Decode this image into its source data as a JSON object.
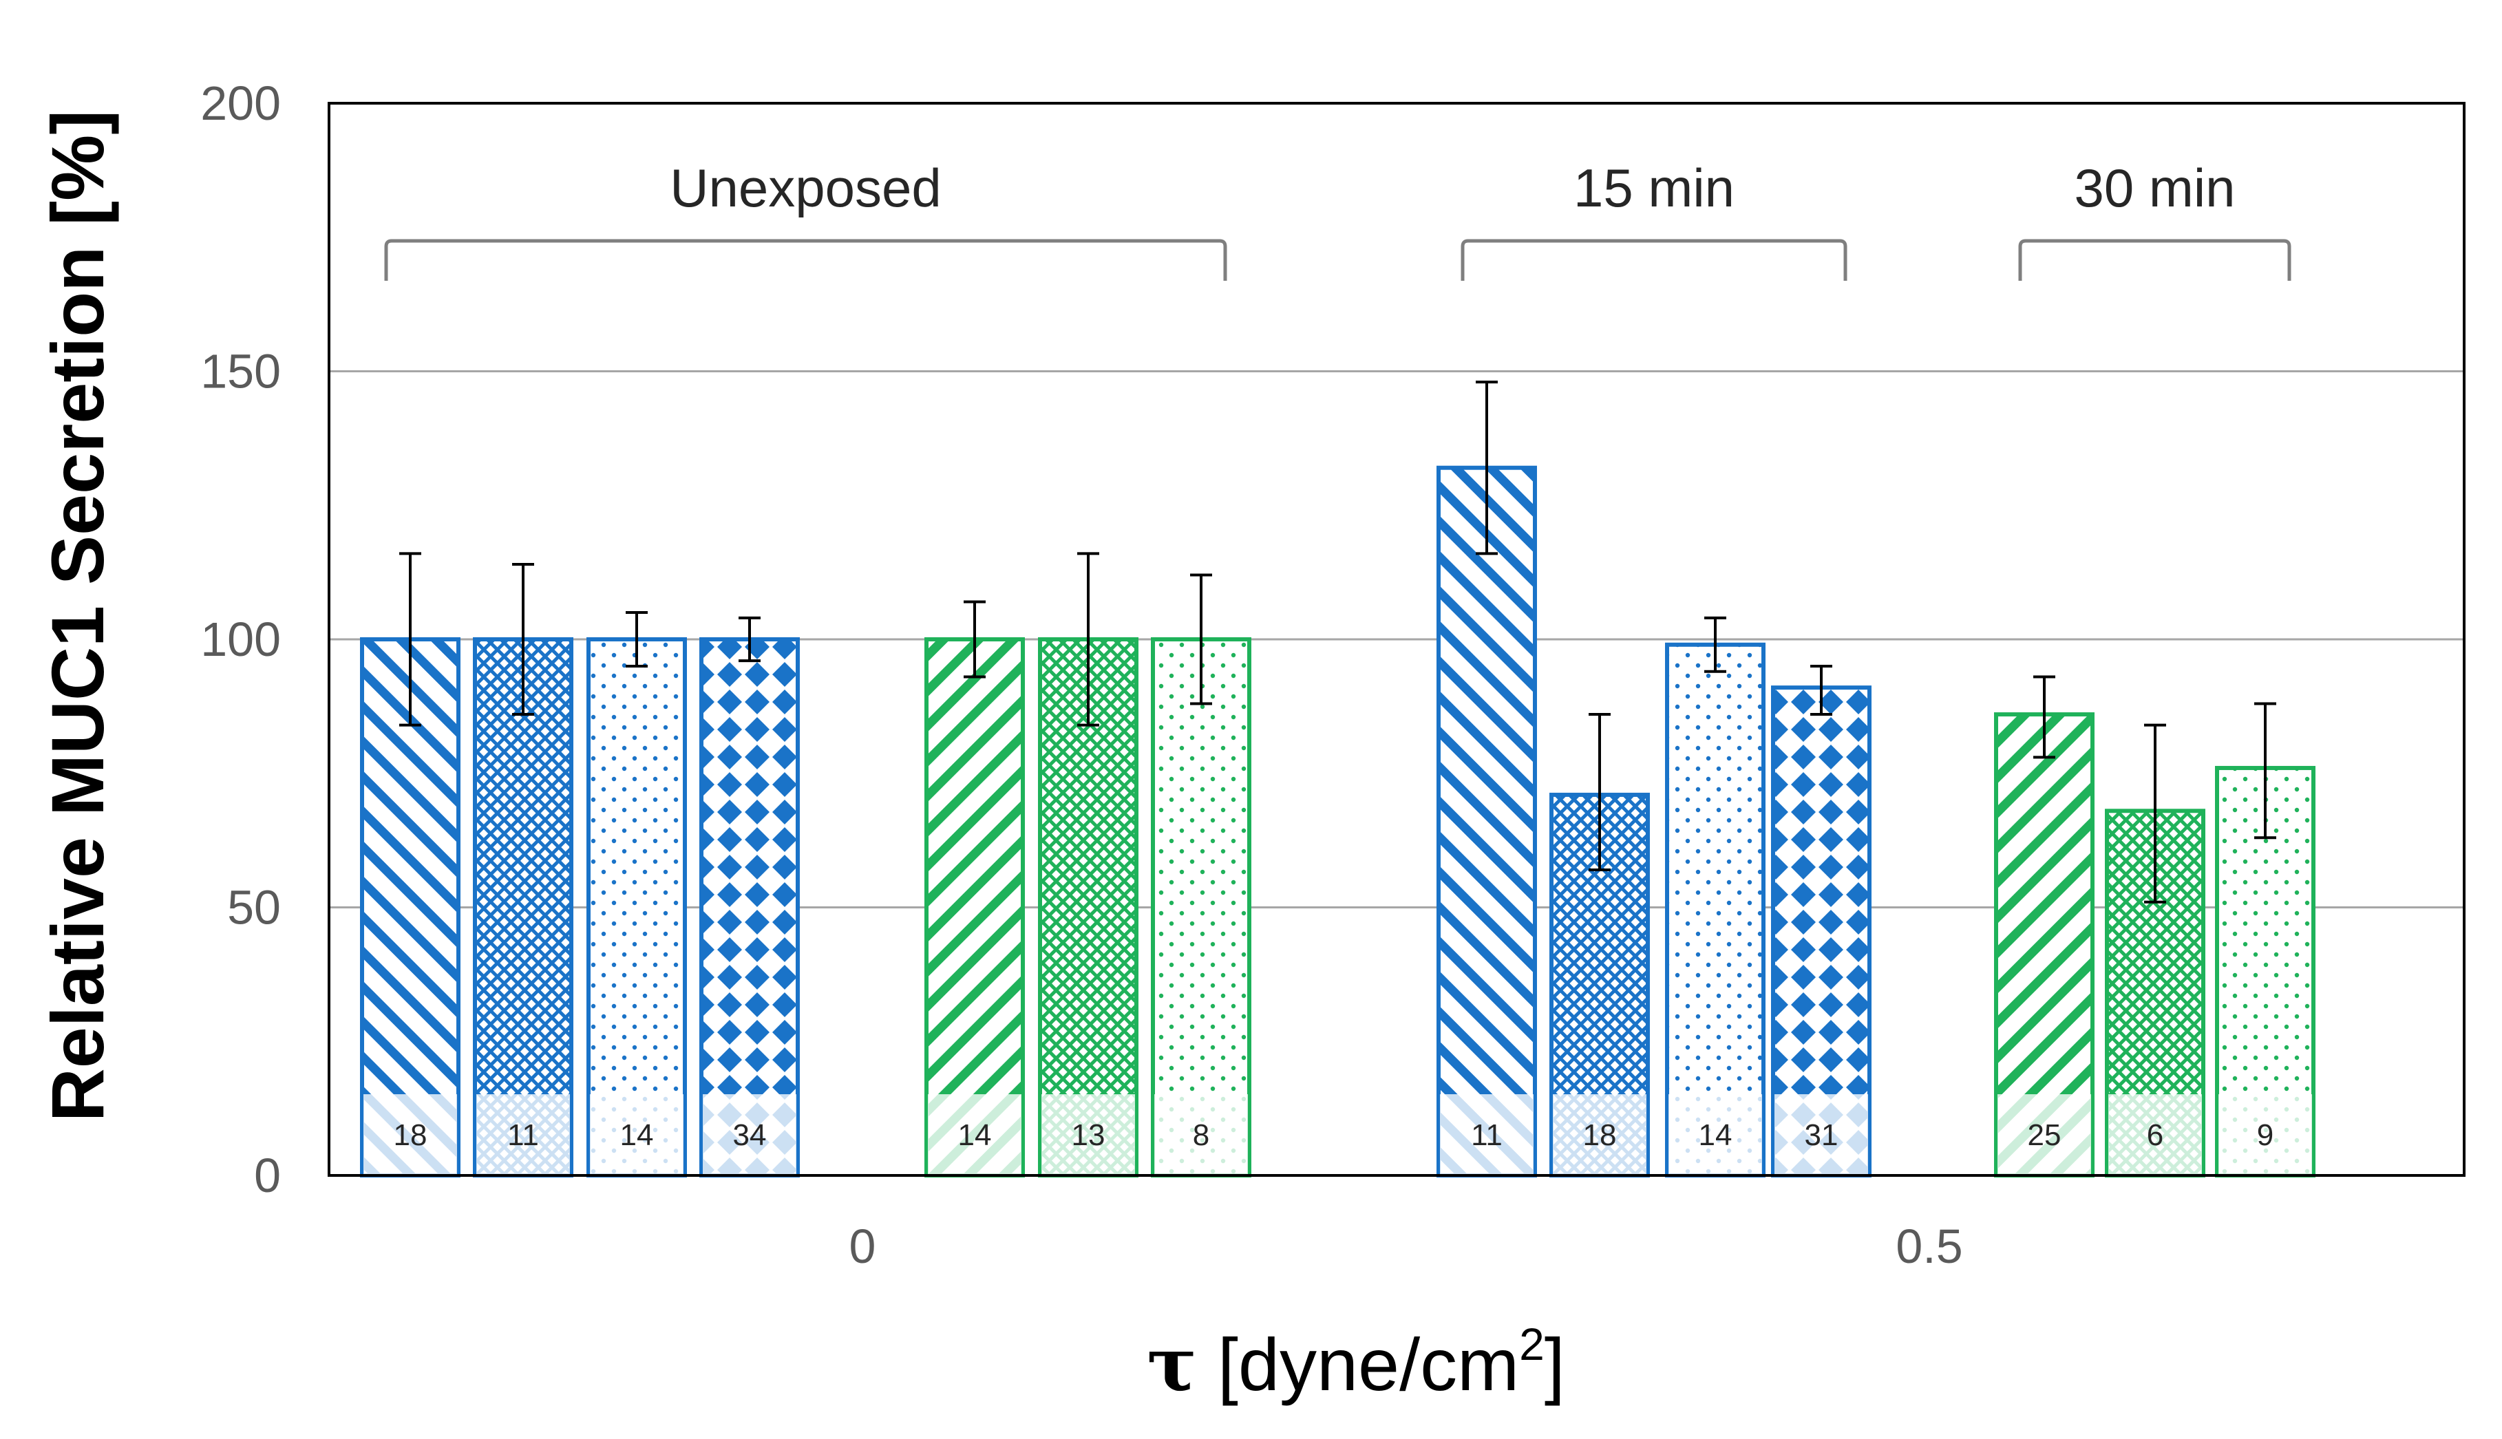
{
  "chart_data": {
    "type": "bar",
    "title": "",
    "ylabel": "Relative MUC1 Secretion [%]",
    "xlabel_symbol": "τ",
    "xlabel_rest": "[dyne/cm",
    "xlabel_sup": "2",
    "xlabel_end": "]",
    "ylim": [
      0,
      200
    ],
    "yticks": [
      0,
      50,
      100,
      150,
      200
    ],
    "grid": true,
    "colors": {
      "blue": "#1a73c8",
      "green": "#1fb25a",
      "grid": "#a6a6a6",
      "error": "#000000"
    },
    "categories": [
      "0",
      "0.5"
    ],
    "brackets": [
      {
        "label": "Unexposed",
        "start_bar": 0,
        "end_bar": 6
      },
      {
        "label": "15 min",
        "start_bar": 7,
        "end_bar": 10
      },
      {
        "label": "30 min",
        "start_bar": 11,
        "end_bar": 13
      }
    ],
    "bars": [
      {
        "category": "0",
        "color": "blue",
        "pattern": "diag",
        "value": 100,
        "err_low": 84,
        "err_high": 116,
        "n": "18"
      },
      {
        "category": "0",
        "color": "blue",
        "pattern": "cross",
        "value": 100,
        "err_low": 86,
        "err_high": 114,
        "n": "11"
      },
      {
        "category": "0",
        "color": "blue",
        "pattern": "dots",
        "value": 100,
        "err_low": 95,
        "err_high": 105,
        "n": "14"
      },
      {
        "category": "0",
        "color": "blue",
        "pattern": "diamond",
        "value": 100,
        "err_low": 96,
        "err_high": 104,
        "n": "34"
      },
      {
        "category": "0",
        "color": "green",
        "pattern": "diag",
        "value": 100,
        "err_low": 93,
        "err_high": 107,
        "n": "14"
      },
      {
        "category": "0",
        "color": "green",
        "pattern": "cross",
        "value": 100,
        "err_low": 84,
        "err_high": 116,
        "n": "13"
      },
      {
        "category": "0",
        "color": "green",
        "pattern": "dots",
        "value": 100,
        "err_low": 88,
        "err_high": 112,
        "n": "8"
      },
      {
        "category": "0.5",
        "color": "blue",
        "pattern": "diag",
        "value": 132,
        "err_low": 116,
        "err_high": 148,
        "n": "11"
      },
      {
        "category": "0.5",
        "color": "blue",
        "pattern": "cross",
        "value": 71,
        "err_low": 57,
        "err_high": 86,
        "n": "18"
      },
      {
        "category": "0.5",
        "color": "blue",
        "pattern": "dots",
        "value": 99,
        "err_low": 94,
        "err_high": 104,
        "n": "14"
      },
      {
        "category": "0.5",
        "color": "blue",
        "pattern": "diamond",
        "value": 91,
        "err_low": 86,
        "err_high": 95,
        "n": "31"
      },
      {
        "category": "0.5",
        "color": "green",
        "pattern": "diag",
        "value": 86,
        "err_low": 78,
        "err_high": 93,
        "n": "25"
      },
      {
        "category": "0.5",
        "color": "green",
        "pattern": "cross",
        "value": 68,
        "err_low": 51,
        "err_high": 84,
        "n": "6"
      },
      {
        "category": "0.5",
        "color": "green",
        "pattern": "dots",
        "value": 76,
        "err_low": 63,
        "err_high": 88,
        "n": "9"
      }
    ]
  }
}
